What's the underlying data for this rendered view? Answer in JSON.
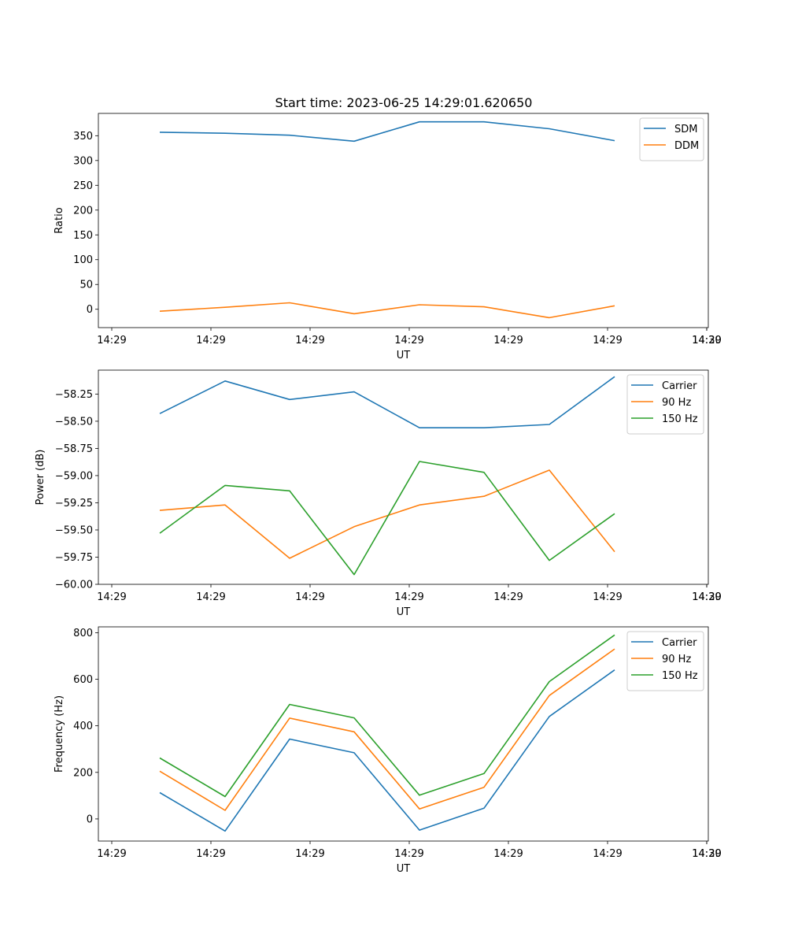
{
  "figure": {
    "title": "Start time: 2023-06-25 14:29:01.620650"
  },
  "chart_data": [
    {
      "type": "line",
      "title": "Start time: 2023-06-25 14:29:01.620650",
      "xlabel": "UT",
      "ylabel": "Ratio",
      "x_tick_labels": [
        "14:29",
        "14:29",
        "14:29",
        "14:29",
        "14:29",
        "14:29",
        "14:29",
        "14:30"
      ],
      "y_ticks": [
        0,
        50,
        100,
        150,
        200,
        250,
        300,
        350
      ],
      "ylim": [
        -37,
        395
      ],
      "legend": "top-right",
      "grid": false,
      "series": [
        {
          "name": "SDM",
          "color": "#1f77b4",
          "values": [
            357,
            355,
            351,
            339,
            378,
            378,
            364,
            340
          ]
        },
        {
          "name": "DDM",
          "color": "#ff7f0e",
          "values": [
            -4,
            4,
            13,
            -9,
            9,
            5,
            -17,
            7
          ]
        }
      ]
    },
    {
      "type": "line",
      "title": "",
      "xlabel": "UT",
      "ylabel": "Power (dB)",
      "x_tick_labels": [
        "14:29",
        "14:29",
        "14:29",
        "14:29",
        "14:29",
        "14:29",
        "14:29",
        "14:30"
      ],
      "y_ticks": [
        -60.0,
        -59.75,
        -59.5,
        -59.25,
        -59.0,
        -58.75,
        -58.5,
        -58.25
      ],
      "y_tick_labels": [
        "−60.00",
        "−59.75",
        "−59.50",
        "−59.25",
        "−59.00",
        "−58.75",
        "−58.50",
        "−58.25"
      ],
      "ylim": [
        -60.0,
        -58.03
      ],
      "legend": "top-right",
      "grid": false,
      "series": [
        {
          "name": "Carrier",
          "color": "#1f77b4",
          "values": [
            -58.43,
            -58.13,
            -58.3,
            -58.23,
            -58.56,
            -58.56,
            -58.53,
            -58.09
          ]
        },
        {
          "name": "90 Hz",
          "color": "#ff7f0e",
          "values": [
            -59.32,
            -59.27,
            -59.76,
            -59.47,
            -59.27,
            -59.19,
            -58.95,
            -59.7
          ]
        },
        {
          "name": "150 Hz",
          "color": "#2ca02c",
          "values": [
            -59.53,
            -59.09,
            -59.14,
            -59.91,
            -58.87,
            -58.97,
            -59.78,
            -59.35
          ]
        }
      ]
    },
    {
      "type": "line",
      "title": "",
      "xlabel": "UT",
      "ylabel": "Frequency (Hz)",
      "x_tick_labels": [
        "14:29",
        "14:29",
        "14:29",
        "14:29",
        "14:29",
        "14:29",
        "14:29",
        "14:30"
      ],
      "y_ticks": [
        0,
        200,
        400,
        600,
        800
      ],
      "ylim": [
        -95,
        825
      ],
      "legend": "top-right",
      "grid": false,
      "series": [
        {
          "name": "Carrier",
          "color": "#1f77b4",
          "values": [
            113,
            -52,
            343,
            284,
            -48,
            46,
            440,
            640
          ]
        },
        {
          "name": "90 Hz",
          "color": "#ff7f0e",
          "values": [
            205,
            37,
            433,
            374,
            43,
            136,
            530,
            730
          ]
        },
        {
          "name": "150 Hz",
          "color": "#2ca02c",
          "values": [
            262,
            96,
            492,
            434,
            102,
            195,
            590,
            790
          ]
        }
      ]
    }
  ]
}
